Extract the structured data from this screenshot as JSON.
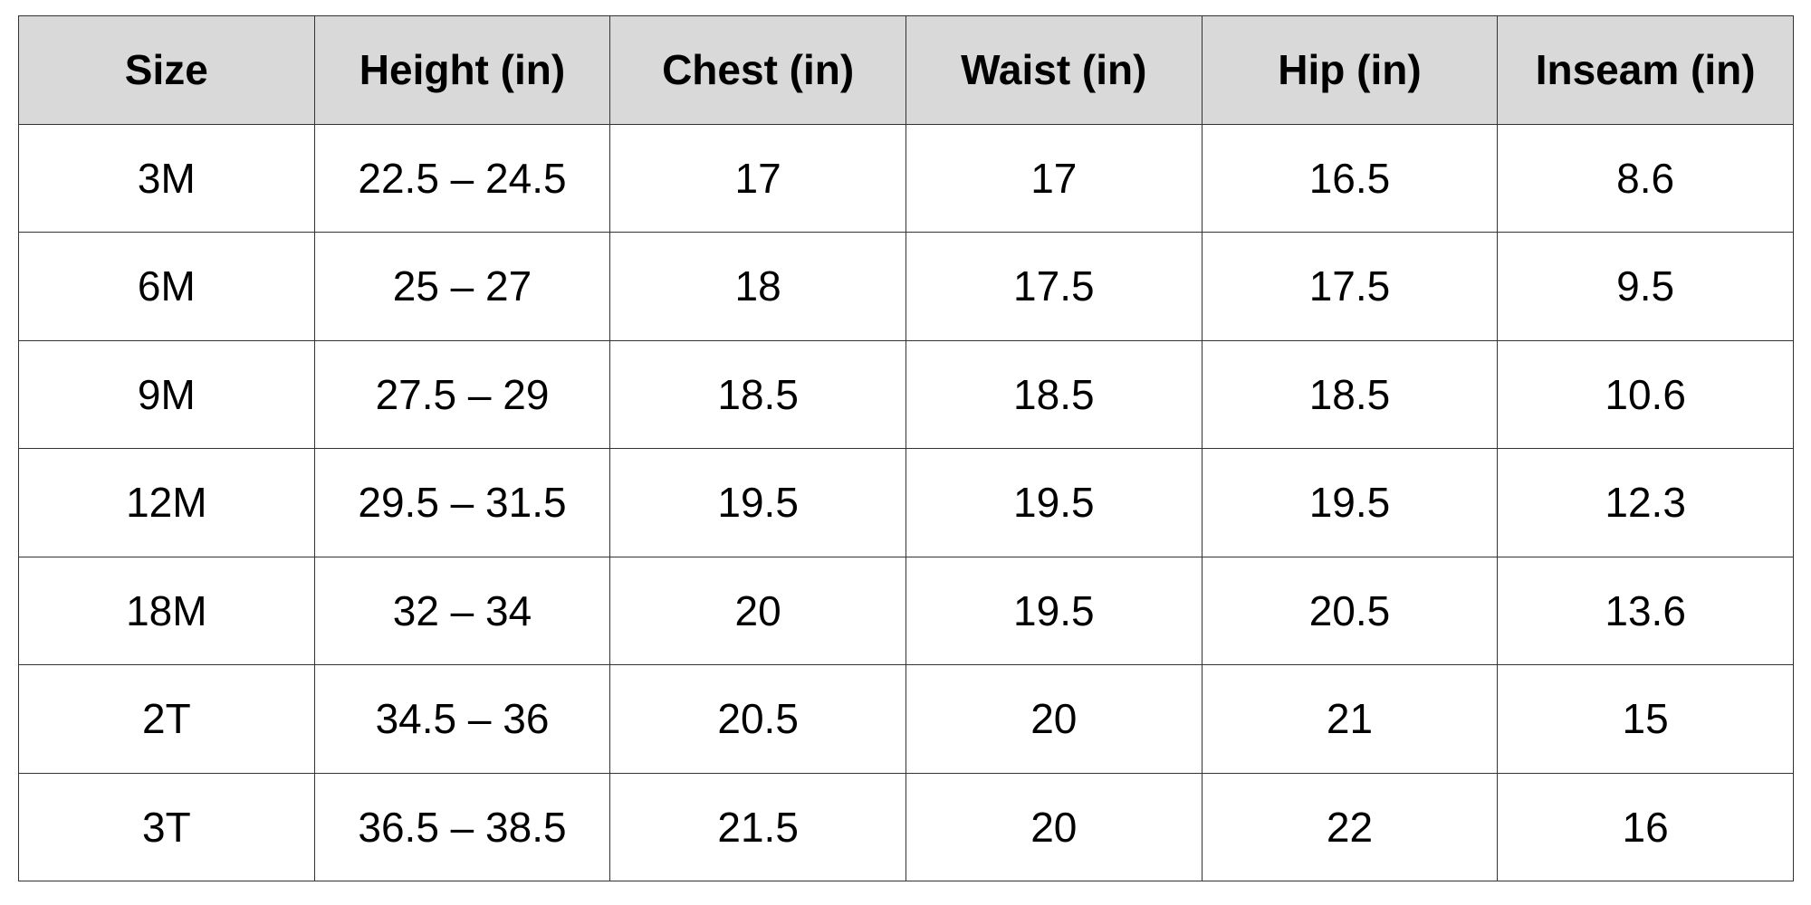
{
  "table": {
    "headers": [
      "Size",
      "Height (in)",
      "Chest (in)",
      "Waist (in)",
      "Hip (in)",
      "Inseam (in)"
    ],
    "rows": [
      [
        "3M",
        "22.5 – 24.5",
        "17",
        "17",
        "16.5",
        "8.6"
      ],
      [
        "6M",
        "25 – 27",
        "18",
        "17.5",
        "17.5",
        "9.5"
      ],
      [
        "9M",
        "27.5 – 29",
        "18.5",
        "18.5",
        "18.5",
        "10.6"
      ],
      [
        "12M",
        "29.5 – 31.5",
        "19.5",
        "19.5",
        "19.5",
        "12.3"
      ],
      [
        "18M",
        "32 – 34",
        "20",
        "19.5",
        "20.5",
        "13.6"
      ],
      [
        "2T",
        "34.5 – 36",
        "20.5",
        "20",
        "21",
        "15"
      ],
      [
        "3T",
        "36.5 – 38.5",
        "21.5",
        "20",
        "22",
        "16"
      ]
    ]
  },
  "colors": {
    "header_background": "#d9d9d9",
    "border": "#333333",
    "cell_background": "#ffffff",
    "text": "#000000"
  }
}
